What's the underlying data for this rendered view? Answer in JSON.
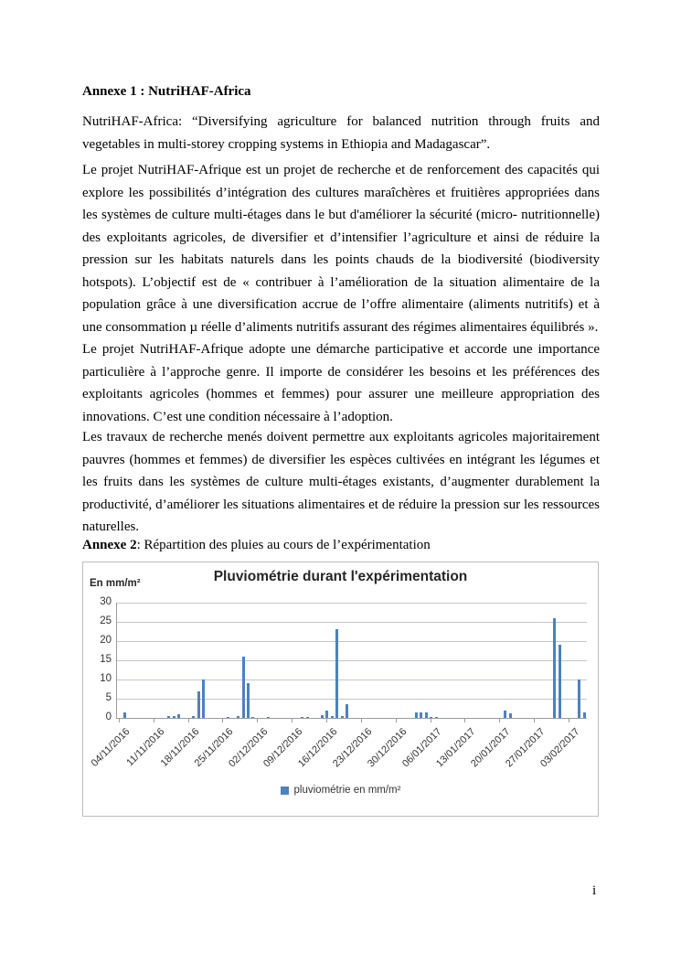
{
  "page": {
    "heading1": "Annexe 1 : NutriHAF-Africa",
    "para1": "NutriHAF-Africa: “Diversifying agriculture for balanced nutrition through fruits and vegetables in multi-storey cropping systems in Ethiopia and Madagascar”.",
    "para2": "Le projet NutriHAF-Afrique est un projet de recherche et de renforcement des capacités qui explore les possibilités d’intégration des cultures maraîchères et fruitières appropriées dans les systèmes de culture multi-étages dans le but d'améliorer la sécurité (micro- nutritionnelle) des exploitants agricoles, de diversifier et d’intensifier l’agriculture et ainsi de réduire la pression sur les habitats naturels dans les points chauds de la biodiversité (biodiversity hotspots). L’objectif est de « contribuer à l’amélioration de la situation alimentaire de la population grâce à une diversification accrue de l’offre alimentaire (aliments nutritifs) et à une consommation µ réelle d’aliments nutritifs assurant des régimes alimentaires équilibrés ».",
    "para3": "Le projet NutriHAF-Afrique adopte une démarche participative et accorde une importance particulière à l’approche genre. Il importe de considérer les besoins et les préférences des exploitants agricoles (hommes et femmes) pour assurer une meilleure appropriation des innovations. C’est une condition nécessaire à l’adoption.",
    "para4": "Les travaux de recherche menés doivent permettre aux exploitants agricoles majoritairement pauvres (hommes et femmes) de diversifier les espèces cultivées en intégrant les légumes et les fruits dans les systèmes de culture multi-étages existants, d’augmenter durablement la productivité, d’améliorer les situations alimentaires et de réduire la pression sur les ressources naturelles.",
    "annexe2_bold": "Annexe 2",
    "annexe2_rest": ": Répartition des pluies au cours  de l’expérimentation",
    "page_number": "i"
  },
  "chart_data": {
    "type": "bar",
    "title": "Pluviométrie durant l'expérimentation",
    "y_axis_label": "En mm/m²",
    "legend": "pluviométrie en mm/m²",
    "bar_color": "#4F81BD",
    "ylim": [
      0,
      30
    ],
    "y_ticks": [
      0,
      5,
      10,
      15,
      20,
      25,
      30
    ],
    "grid": true,
    "legend_position": "bottom",
    "x_start_date": "04/11/2016",
    "x_days_total": 95,
    "x_tick_labels": [
      "04/11/2016",
      "11/11/2016",
      "18/11/2016",
      "25/11/2016",
      "02/12/2016",
      "09/12/2016",
      "16/12/2016",
      "23/12/2016",
      "30/12/2016",
      "06/01/2017",
      "13/01/2017",
      "20/01/2017",
      "27/01/2017",
      "03/02/2017"
    ],
    "bars": [
      {
        "date": "05/11/2016",
        "value": 1.5
      },
      {
        "date": "14/11/2016",
        "value": 0.5
      },
      {
        "date": "15/11/2016",
        "value": 0.5
      },
      {
        "date": "16/11/2016",
        "value": 1.0
      },
      {
        "date": "19/11/2016",
        "value": 0.5
      },
      {
        "date": "20/11/2016",
        "value": 7.0
      },
      {
        "date": "21/11/2016",
        "value": 10.0
      },
      {
        "date": "26/11/2016",
        "value": 0.3
      },
      {
        "date": "28/11/2016",
        "value": 0.5
      },
      {
        "date": "29/11/2016",
        "value": 16.0
      },
      {
        "date": "30/11/2016",
        "value": 9.0
      },
      {
        "date": "01/12/2016",
        "value": 0.3
      },
      {
        "date": "04/12/2016",
        "value": 0.2
      },
      {
        "date": "11/12/2016",
        "value": 0.3
      },
      {
        "date": "12/12/2016",
        "value": 0.3
      },
      {
        "date": "15/12/2016",
        "value": 0.7
      },
      {
        "date": "16/12/2016",
        "value": 2.0
      },
      {
        "date": "17/12/2016",
        "value": 0.5
      },
      {
        "date": "18/12/2016",
        "value": 23.0
      },
      {
        "date": "19/12/2016",
        "value": 0.5
      },
      {
        "date": "20/12/2016",
        "value": 3.5
      },
      {
        "date": "03/01/2017",
        "value": 1.5
      },
      {
        "date": "04/01/2017",
        "value": 1.5
      },
      {
        "date": "05/01/2017",
        "value": 1.5
      },
      {
        "date": "06/01/2017",
        "value": 0.3
      },
      {
        "date": "07/01/2017",
        "value": 0.2
      },
      {
        "date": "21/01/2017",
        "value": 2.0
      },
      {
        "date": "22/01/2017",
        "value": 1.2
      },
      {
        "date": "31/01/2017",
        "value": 26.0
      },
      {
        "date": "01/02/2017",
        "value": 19.0
      },
      {
        "date": "05/02/2017",
        "value": 10.0
      },
      {
        "date": "06/02/2017",
        "value": 1.5
      }
    ]
  }
}
